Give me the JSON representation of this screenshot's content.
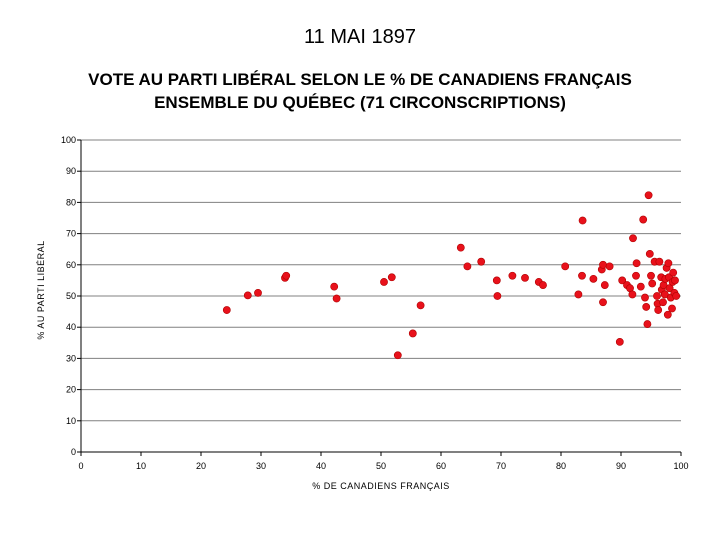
{
  "header": {
    "date": "11 MAI 1897",
    "title_line1": "VOTE AU PARTI LIBÉRAL SELON LE % DE CANADIENS FRANÇAIS",
    "title_line2": "ENSEMBLE DU QUÉBEC (71 CIRCONSCRIPTIONS)"
  },
  "colors": {
    "point": "#e8111b",
    "axis": "#000000",
    "grid": "#808080"
  },
  "chart_data": {
    "type": "scatter",
    "title": "VOTE AU PARTI LIBÉRAL SELON LE % DE CANADIENS FRANÇAIS ENSEMBLE DU QUÉBEC (71 CIRCONSCRIPTIONS)",
    "xlabel": "% DE CANADIENS FRANÇAIS",
    "ylabel": "% AU PARTI LIBÉRAL",
    "xlim": [
      0,
      100
    ],
    "ylim": [
      0,
      100
    ],
    "x_ticks": [
      "0",
      "10",
      "20",
      "30",
      "40",
      "50",
      "60",
      "70",
      "80",
      "90",
      "100"
    ],
    "y_ticks": [
      "0",
      "10",
      "20",
      "30",
      "40",
      "50",
      "60",
      "70",
      "80",
      "90",
      "100"
    ],
    "grid": true,
    "legend": "none",
    "points": [
      [
        24.3,
        45.5
      ],
      [
        27.8,
        50.2
      ],
      [
        29.5,
        51
      ],
      [
        34,
        55.8
      ],
      [
        34.2,
        56.5
      ],
      [
        42.2,
        53
      ],
      [
        42.6,
        49.2
      ],
      [
        50.5,
        54.5
      ],
      [
        51.8,
        56
      ],
      [
        52.8,
        31
      ],
      [
        55.3,
        38
      ],
      [
        56.6,
        47
      ],
      [
        63.3,
        65.5
      ],
      [
        64.4,
        59.5
      ],
      [
        66.7,
        61
      ],
      [
        69.3,
        55
      ],
      [
        69.4,
        50
      ],
      [
        71.9,
        56.5
      ],
      [
        74,
        55.8
      ],
      [
        76.3,
        54.5
      ],
      [
        77,
        53.5
      ],
      [
        80.7,
        59.5
      ],
      [
        82.9,
        50.5
      ],
      [
        83.5,
        56.5
      ],
      [
        83.6,
        74.2
      ],
      [
        85.4,
        55.5
      ],
      [
        86.8,
        58.5
      ],
      [
        87,
        48
      ],
      [
        87,
        60
      ],
      [
        87.3,
        53.5
      ],
      [
        88.1,
        59.5
      ],
      [
        89.8,
        35.3
      ],
      [
        90.2,
        55
      ],
      [
        91,
        53.5
      ],
      [
        91.5,
        52.5
      ],
      [
        91.9,
        50.5
      ],
      [
        92,
        68.5
      ],
      [
        92.5,
        56.5
      ],
      [
        92.6,
        60.5
      ],
      [
        93.3,
        53
      ],
      [
        93.7,
        74.5
      ],
      [
        94,
        49.5
      ],
      [
        94.2,
        46.5
      ],
      [
        94.4,
        41
      ],
      [
        94.6,
        82.3
      ],
      [
        94.8,
        63.5
      ],
      [
        95,
        56.5
      ],
      [
        95.2,
        54
      ],
      [
        95.6,
        61
      ],
      [
        96,
        50
      ],
      [
        96.1,
        47.5
      ],
      [
        96.2,
        45.5
      ],
      [
        96.4,
        61
      ],
      [
        96.7,
        56
      ],
      [
        96.8,
        52
      ],
      [
        97,
        48
      ],
      [
        97.1,
        53.5
      ],
      [
        97.3,
        50.5
      ],
      [
        97.4,
        55.5
      ],
      [
        97.6,
        59
      ],
      [
        97.8,
        44
      ],
      [
        97.9,
        60.5
      ],
      [
        98,
        56
      ],
      [
        98.1,
        52.5
      ],
      [
        98.3,
        49.5
      ],
      [
        98.5,
        46
      ],
      [
        98.6,
        54.5
      ],
      [
        98.7,
        57.5
      ],
      [
        98.9,
        51
      ],
      [
        99,
        55
      ],
      [
        99.2,
        50
      ]
    ]
  }
}
